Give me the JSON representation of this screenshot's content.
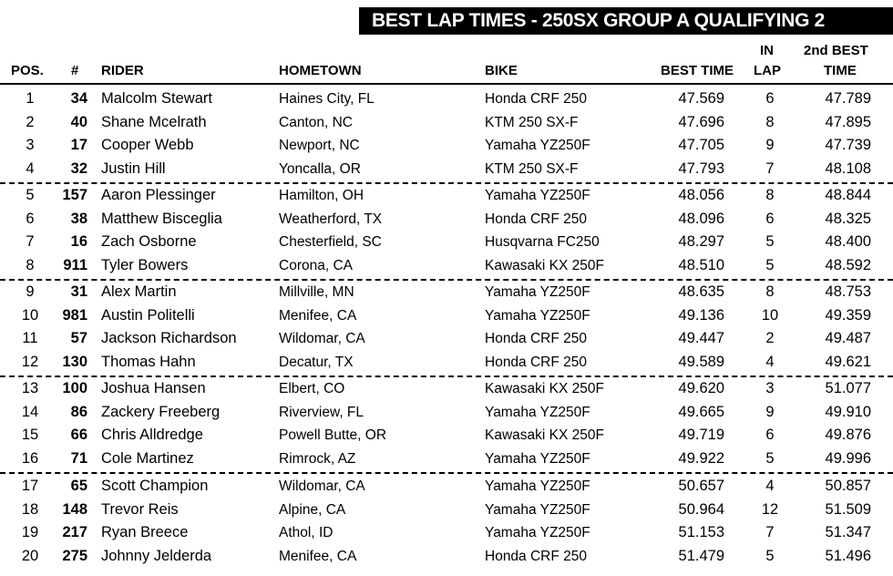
{
  "title": "BEST LAP TIMES - 250SX GROUP A QUALIFYING 2",
  "headers": {
    "pos": "POS.",
    "num": "#",
    "rider": "RIDER",
    "hometown": "HOMETOWN",
    "bike": "BIKE",
    "best_time": "BEST TIME",
    "in_lap_1": "IN",
    "in_lap_2": "LAP",
    "second_best_1": "2nd BEST",
    "second_best_2": "TIME"
  },
  "rows": [
    {
      "pos": "1",
      "num": "34",
      "rider": "Malcolm Stewart",
      "hometown": "Haines City, FL",
      "bike": "Honda CRF 250",
      "best": "47.569",
      "lap": "6",
      "second": "47.789"
    },
    {
      "pos": "2",
      "num": "40",
      "rider": "Shane Mcelrath",
      "hometown": "Canton, NC",
      "bike": "KTM 250 SX-F",
      "best": "47.696",
      "lap": "8",
      "second": "47.895"
    },
    {
      "pos": "3",
      "num": "17",
      "rider": "Cooper Webb",
      "hometown": "Newport, NC",
      "bike": "Yamaha YZ250F",
      "best": "47.705",
      "lap": "9",
      "second": "47.739"
    },
    {
      "pos": "4",
      "num": "32",
      "rider": "Justin Hill",
      "hometown": "Yoncalla, OR",
      "bike": "KTM 250 SX-F",
      "best": "47.793",
      "lap": "7",
      "second": "48.108"
    },
    {
      "pos": "5",
      "num": "157",
      "rider": "Aaron Plessinger",
      "hometown": "Hamilton, OH",
      "bike": "Yamaha YZ250F",
      "best": "48.056",
      "lap": "8",
      "second": "48.844"
    },
    {
      "pos": "6",
      "num": "38",
      "rider": "Matthew Bisceglia",
      "hometown": "Weatherford, TX",
      "bike": "Honda CRF 250",
      "best": "48.096",
      "lap": "6",
      "second": "48.325"
    },
    {
      "pos": "7",
      "num": "16",
      "rider": "Zach Osborne",
      "hometown": "Chesterfield, SC",
      "bike": "Husqvarna FC250",
      "best": "48.297",
      "lap": "5",
      "second": "48.400"
    },
    {
      "pos": "8",
      "num": "911",
      "rider": "Tyler Bowers",
      "hometown": "Corona, CA",
      "bike": "Kawasaki KX 250F",
      "best": "48.510",
      "lap": "5",
      "second": "48.592"
    },
    {
      "pos": "9",
      "num": "31",
      "rider": "Alex Martin",
      "hometown": "Millville, MN",
      "bike": "Yamaha YZ250F",
      "best": "48.635",
      "lap": "8",
      "second": "48.753"
    },
    {
      "pos": "10",
      "num": "981",
      "rider": "Austin Politelli",
      "hometown": "Menifee, CA",
      "bike": "Yamaha YZ250F",
      "best": "49.136",
      "lap": "10",
      "second": "49.359"
    },
    {
      "pos": "11",
      "num": "57",
      "rider": "Jackson Richardson",
      "hometown": "Wildomar, CA",
      "bike": "Honda CRF 250",
      "best": "49.447",
      "lap": "2",
      "second": "49.487"
    },
    {
      "pos": "12",
      "num": "130",
      "rider": "Thomas Hahn",
      "hometown": "Decatur, TX",
      "bike": "Honda CRF 250",
      "best": "49.589",
      "lap": "4",
      "second": "49.621"
    },
    {
      "pos": "13",
      "num": "100",
      "rider": "Joshua Hansen",
      "hometown": "Elbert, CO",
      "bike": "Kawasaki KX 250F",
      "best": "49.620",
      "lap": "3",
      "second": "51.077"
    },
    {
      "pos": "14",
      "num": "86",
      "rider": "Zackery Freeberg",
      "hometown": "Riverview, FL",
      "bike": "Yamaha YZ250F",
      "best": "49.665",
      "lap": "9",
      "second": "49.910"
    },
    {
      "pos": "15",
      "num": "66",
      "rider": "Chris Alldredge",
      "hometown": "Powell Butte, OR",
      "bike": "Kawasaki KX 250F",
      "best": "49.719",
      "lap": "6",
      "second": "49.876"
    },
    {
      "pos": "16",
      "num": "71",
      "rider": "Cole Martinez",
      "hometown": "Rimrock, AZ",
      "bike": "Yamaha YZ250F",
      "best": "49.922",
      "lap": "5",
      "second": "49.996"
    },
    {
      "pos": "17",
      "num": "65",
      "rider": "Scott Champion",
      "hometown": "Wildomar, CA",
      "bike": "Yamaha YZ250F",
      "best": "50.657",
      "lap": "4",
      "second": "50.857"
    },
    {
      "pos": "18",
      "num": "148",
      "rider": "Trevor Reis",
      "hometown": "Alpine, CA",
      "bike": "Yamaha YZ250F",
      "best": "50.964",
      "lap": "12",
      "second": "51.509"
    },
    {
      "pos": "19",
      "num": "217",
      "rider": "Ryan Breece",
      "hometown": "Athol, ID",
      "bike": "Yamaha YZ250F",
      "best": "51.153",
      "lap": "7",
      "second": "51.347"
    },
    {
      "pos": "20",
      "num": "275",
      "rider": "Johnny Jelderda",
      "hometown": "Menifee, CA",
      "bike": "Honda CRF 250",
      "best": "51.479",
      "lap": "5",
      "second": "51.496"
    }
  ]
}
